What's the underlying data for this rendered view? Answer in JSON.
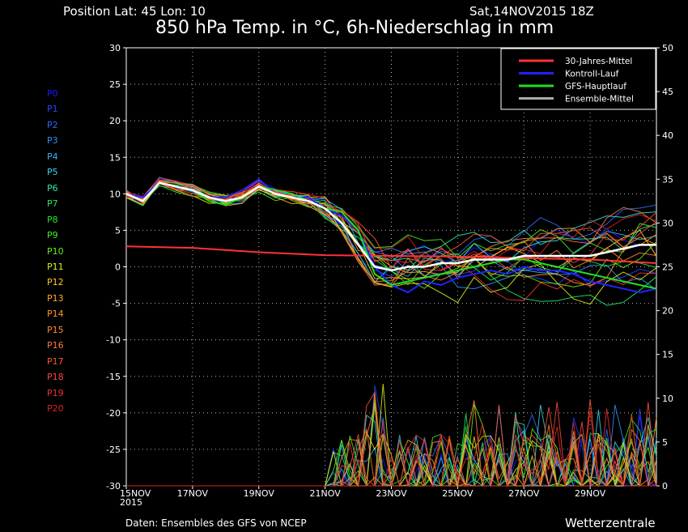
{
  "header": {
    "position_label": "Position   Lat: 45  Lon: 10",
    "datetime": "Sat,14NOV2015  18Z",
    "title": "850 hPa Temp. in °C, 6h-Niederschlag in mm"
  },
  "footer": {
    "source": "Daten:  Ensembles  des  GFS  von  NCEP",
    "brand": "Wetterzentrale"
  },
  "members": [
    {
      "label": "P0",
      "color": "#1a1aff"
    },
    {
      "label": "P1",
      "color": "#2244ff"
    },
    {
      "label": "P2",
      "color": "#2a6cff"
    },
    {
      "label": "P3",
      "color": "#2e90ff"
    },
    {
      "label": "P4",
      "color": "#33b4ff"
    },
    {
      "label": "P5",
      "color": "#33d8ee"
    },
    {
      "label": "P6",
      "color": "#33e8a8"
    },
    {
      "label": "P7",
      "color": "#22e866"
    },
    {
      "label": "P8",
      "color": "#22e633"
    },
    {
      "label": "P9",
      "color": "#44ee22"
    },
    {
      "label": "P10",
      "color": "#66ee11"
    },
    {
      "label": "P11",
      "color": "#ddee11"
    },
    {
      "label": "P12",
      "color": "#ffcc22"
    },
    {
      "label": "P13",
      "color": "#ffaa22"
    },
    {
      "label": "P14",
      "color": "#ff9922"
    },
    {
      "label": "P15",
      "color": "#ff8833"
    },
    {
      "label": "P16",
      "color": "#ff7733"
    },
    {
      "label": "P17",
      "color": "#ff5533"
    },
    {
      "label": "P18",
      "color": "#ff4444"
    },
    {
      "label": "P19",
      "color": "#ee3333"
    },
    {
      "label": "P20",
      "color": "#dd2222"
    }
  ],
  "chart_data": {
    "type": "line",
    "title": "850 hPa Temp. in °C, 6h-Niederschlag in mm",
    "x_tick_labels": [
      "15NOV\n2015",
      "17NOV",
      "19NOV",
      "21NOV",
      "23NOV",
      "25NOV",
      "27NOV",
      "29NOV"
    ],
    "x_tick_days": [
      0,
      2,
      4,
      6,
      8,
      10,
      12,
      14
    ],
    "x_range_days": [
      0,
      16
    ],
    "y_left": {
      "ticks": [
        30,
        25,
        20,
        15,
        10,
        5,
        0,
        -5,
        -10,
        -15,
        -20,
        -25,
        -30
      ],
      "range": [
        -30,
        30
      ]
    },
    "y_right": {
      "ticks": [
        50,
        45,
        40,
        35,
        30,
        25,
        20,
        15,
        10,
        5,
        0
      ],
      "range": [
        0,
        50
      ]
    },
    "grid": true,
    "legend_position": "top-right",
    "legend": [
      {
        "name": "30-Jahres-Mittel",
        "color": "#ff3333"
      },
      {
        "name": "Kontroll-Lauf",
        "color": "#2222ff"
      },
      {
        "name": "GFS-Hauptlauf",
        "color": "#22dd22"
      },
      {
        "name": "Ensemble-Mittel",
        "color": "#aaaaaa"
      }
    ],
    "series": [
      {
        "name": "30-Jahres-Mittel",
        "color": "#ff3333",
        "x": [
          0,
          2,
          4,
          6,
          8,
          10,
          12,
          14,
          16
        ],
        "y": [
          2.8,
          2.6,
          2.0,
          1.6,
          1.5,
          1.4,
          1.2,
          1.0,
          0.5
        ]
      },
      {
        "name": "Kontroll-Lauf",
        "color": "#2222ff",
        "x": [
          0,
          0.5,
          1,
          1.5,
          2,
          2.5,
          3,
          3.5,
          4,
          4.5,
          5,
          5.5,
          6,
          6.5,
          7,
          7.5,
          8,
          8.5,
          9,
          9.5,
          10,
          10.5,
          11,
          11.5,
          12,
          12.5,
          13,
          13.5,
          14,
          14.5,
          15,
          15.5,
          16
        ],
        "y": [
          10,
          9.5,
          11.5,
          11,
          10.5,
          9.5,
          9.5,
          10.5,
          12,
          10,
          9.5,
          9.5,
          8,
          7,
          5,
          0,
          -2.5,
          -3.5,
          -2,
          -2.5,
          -1.5,
          -1,
          -0.5,
          -1,
          0,
          -0.5,
          -0.5,
          -1,
          -2,
          -2.5,
          -3,
          -3.5,
          -3
        ]
      },
      {
        "name": "GFS-Hauptlauf",
        "color": "#22dd22",
        "x": [
          0,
          0.5,
          1,
          1.5,
          2,
          2.5,
          3,
          3.5,
          4,
          4.5,
          5,
          5.5,
          6,
          6.5,
          7,
          7.5,
          8,
          8.5,
          9,
          9.5,
          10,
          10.5,
          11,
          11.5,
          12,
          12.5,
          13,
          13.5,
          14,
          14.5,
          15,
          15.5,
          16
        ],
        "y": [
          10,
          9,
          11.5,
          11,
          10.5,
          9,
          8.5,
          9.5,
          11,
          10.5,
          10,
          9,
          8,
          7.5,
          5,
          -1,
          -2.5,
          -2,
          -1.5,
          -1,
          -0.5,
          0,
          0.5,
          1,
          1,
          0.5,
          0,
          -0.5,
          -1,
          -1.5,
          -2,
          -2.5,
          -3
        ]
      },
      {
        "name": "Ensemble-Mittel",
        "color": "#ffffff",
        "x": [
          0,
          0.5,
          1,
          1.5,
          2,
          2.5,
          3,
          3.5,
          4,
          4.5,
          5,
          5.5,
          6,
          6.5,
          7,
          7.5,
          8,
          8.5,
          9,
          9.5,
          10,
          10.5,
          11,
          11.5,
          12,
          12.5,
          13,
          13.5,
          14,
          14.5,
          15,
          15.5,
          16
        ],
        "y": [
          10,
          9,
          11.5,
          11,
          10.5,
          9.5,
          9,
          9.5,
          11,
          10,
          9.5,
          9,
          8,
          6,
          3,
          0,
          -0.5,
          0,
          0,
          0.5,
          0.5,
          1,
          1,
          1,
          1.5,
          1.5,
          1.5,
          1.5,
          1.5,
          2,
          2.5,
          3,
          3
        ]
      }
    ]
  }
}
